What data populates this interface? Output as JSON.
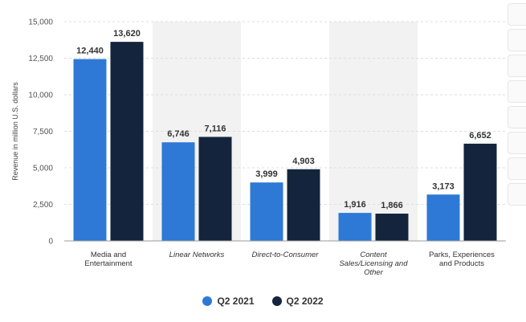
{
  "chart_data": {
    "type": "bar",
    "ylabel": "Revenue in million U.S. dollars",
    "ylim": [
      0,
      15000
    ],
    "yticks": [
      0,
      2500,
      5000,
      7500,
      10000,
      12500,
      15000
    ],
    "ytick_labels": [
      "0",
      "2,500",
      "5,000",
      "7,500",
      "10,000",
      "12,500",
      "15,000"
    ],
    "grid": true,
    "legend_position": "bottom",
    "categories": [
      [
        "Media and",
        "Entertainment"
      ],
      [
        "Linear Networks"
      ],
      [
        "Direct-to-Consumer"
      ],
      [
        "Content",
        "Sales/Licensing and",
        "Other"
      ],
      [
        "Parks, Experiences",
        "and Products"
      ]
    ],
    "category_italic": [
      false,
      true,
      true,
      true,
      false
    ],
    "series": [
      {
        "name": "Q2 2021",
        "color": "#2e78d6",
        "values": [
          12440,
          6746,
          3999,
          1916,
          3173
        ],
        "labels": [
          "12,440",
          "6,746",
          "3,999",
          "1,916",
          "3,173"
        ]
      },
      {
        "name": "Q2 2022",
        "color": "#14243c",
        "values": [
          13620,
          7116,
          4903,
          1866,
          6652
        ],
        "labels": [
          "13,620",
          "7,116",
          "4,903",
          "1,866",
          "6,652"
        ]
      }
    ],
    "band_color": "#f2f2f2",
    "gridline_color": "#dddddd"
  }
}
